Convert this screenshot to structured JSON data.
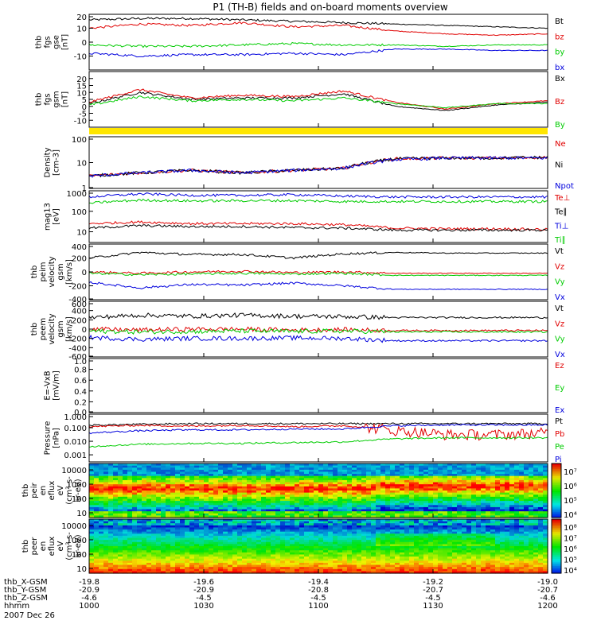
{
  "title": "P1 (TH-B) fields and on-board moments overview",
  "colors": {
    "black": "#000000",
    "red": "#e00000",
    "green": "#00cc00",
    "blue": "#0000dd",
    "yellow": "#ffe600"
  },
  "chart_data": [
    {
      "type": "line",
      "name": "fgs-gse",
      "ylabel": [
        "thb",
        "fgs",
        "gse",
        "[nT]"
      ],
      "ylim": [
        -20,
        20
      ],
      "ticks": [
        "20",
        "10",
        "0",
        "-10"
      ],
      "series": [
        {
          "name": "Bt",
          "color": "black",
          "base": [
            16,
            17,
            17,
            16,
            15,
            14,
            13,
            12,
            11,
            10
          ]
        },
        {
          "name": "bz",
          "color": "red",
          "base": [
            10,
            13,
            12,
            14,
            11,
            12,
            8,
            6,
            5,
            6
          ]
        },
        {
          "name": "by",
          "color": "green",
          "base": [
            -2,
            -3,
            -3,
            -2,
            -1,
            -2,
            -2,
            -3,
            -2,
            -2
          ]
        },
        {
          "name": "bx",
          "color": "blue",
          "base": [
            -8,
            -10,
            -9,
            -9,
            -8,
            -9,
            -5,
            -5,
            -6,
            -6
          ]
        }
      ]
    },
    {
      "type": "line",
      "name": "fgs-gsm",
      "ylabel": [
        "thb",
        "fgs",
        "gsm",
        "[nT]"
      ],
      "ylim": [
        -15,
        25
      ],
      "ticks": [
        "20",
        "15",
        "10",
        "5",
        "0",
        "-5",
        "-10"
      ],
      "series": [
        {
          "name": "Bx",
          "color": "black",
          "base": [
            2,
            10,
            5,
            6,
            6,
            9,
            0,
            -3,
            1,
            3
          ]
        },
        {
          "name": "Bz",
          "color": "red",
          "base": [
            3,
            12,
            6,
            8,
            7,
            11,
            3,
            -2,
            2,
            4
          ]
        },
        {
          "name": "By",
          "color": "green",
          "base": [
            1,
            7,
            4,
            5,
            4,
            6,
            2,
            -1,
            2,
            2
          ]
        }
      ]
    },
    {
      "type": "line",
      "name": "density",
      "ylabel": [
        "Density",
        "[cm-3]"
      ],
      "ylim": [
        1,
        100
      ],
      "log": true,
      "ticks": [
        "100",
        "10",
        "1"
      ],
      "series": [
        {
          "name": "Ne",
          "color": "red",
          "base": [
            3,
            4,
            5,
            4,
            5,
            6,
            14,
            15,
            15,
            16
          ]
        },
        {
          "name": "Ni",
          "color": "black",
          "base": [
            3,
            4,
            5,
            4,
            5,
            6,
            14,
            15,
            15,
            16
          ]
        },
        {
          "name": "Npot",
          "color": "blue",
          "base": [
            3,
            4,
            5,
            4,
            5,
            6,
            13,
            15,
            15,
            15
          ]
        }
      ]
    },
    {
      "type": "line",
      "name": "temperature",
      "ylabel": [
        "mag13",
        "[eV]"
      ],
      "ylim": [
        3,
        1000
      ],
      "log": true,
      "ticks": [
        "1000",
        "100",
        "10"
      ],
      "series": [
        {
          "name": "Te⊥",
          "color": "red",
          "base": [
            25,
            30,
            25,
            25,
            25,
            22,
            15,
            14,
            14,
            13
          ]
        },
        {
          "name": "Te∥",
          "color": "black",
          "base": [
            15,
            20,
            18,
            18,
            16,
            15,
            12,
            12,
            12,
            12
          ]
        },
        {
          "name": "Ti⊥",
          "color": "blue",
          "base": [
            500,
            700,
            600,
            600,
            650,
            550,
            500,
            500,
            500,
            500
          ]
        },
        {
          "name": "Ti∥",
          "color": "green",
          "base": [
            250,
            350,
            320,
            330,
            330,
            300,
            300,
            300,
            300,
            300
          ]
        }
      ]
    },
    {
      "type": "line",
      "name": "peim-velocity",
      "ylabel": [
        "thb",
        "peim",
        "velocity",
        "gsm",
        "[km/s]"
      ],
      "ylim": [
        -400,
        400
      ],
      "ticks": [
        "400",
        "200",
        "0",
        "-200",
        "-400"
      ],
      "series": [
        {
          "name": "Vt",
          "color": "black",
          "base": [
            200,
            280,
            250,
            250,
            200,
            260,
            280,
            270,
            270,
            270
          ]
        },
        {
          "name": "Vz",
          "color": "red",
          "base": [
            0,
            -20,
            0,
            10,
            -10,
            0,
            -20,
            -20,
            -20,
            -20
          ]
        },
        {
          "name": "Vy",
          "color": "green",
          "base": [
            -20,
            -40,
            -30,
            -20,
            -30,
            -20,
            -50,
            -50,
            -50,
            -50
          ]
        },
        {
          "name": "Vx",
          "color": "blue",
          "base": [
            -150,
            -230,
            -180,
            -190,
            -160,
            -200,
            -250,
            -250,
            -250,
            -250
          ]
        }
      ]
    },
    {
      "type": "line",
      "name": "peem-velocity",
      "ylabel": [
        "thb",
        "peem",
        "velocity",
        "gsm",
        "[km/s]"
      ],
      "ylim": [
        -600,
        600
      ],
      "ticks": [
        "600",
        "400",
        "200",
        "0",
        "-200",
        "-400",
        "-600"
      ],
      "series": [
        {
          "name": "Vt",
          "color": "black",
          "base": [
            250,
            300,
            280,
            300,
            280,
            270,
            250,
            250,
            250,
            250
          ]
        },
        {
          "name": "Vz",
          "color": "red",
          "base": [
            0,
            -20,
            0,
            0,
            -20,
            -10,
            -30,
            -30,
            -30,
            -30
          ]
        },
        {
          "name": "Vy",
          "color": "green",
          "base": [
            -40,
            -60,
            -50,
            -40,
            -50,
            -40,
            -60,
            -60,
            -60,
            -60
          ]
        },
        {
          "name": "Vx",
          "color": "blue",
          "base": [
            -180,
            -220,
            -200,
            -200,
            -190,
            -200,
            -250,
            -250,
            -250,
            -250
          ]
        }
      ]
    },
    {
      "type": "line",
      "name": "efield",
      "ylabel": [
        "E=-VxB",
        "[mV/m]"
      ],
      "ylim": [
        0,
        1
      ],
      "ticks": [
        "1.0",
        "0.8",
        "0.6",
        "0.4",
        "0.2",
        "0.0"
      ],
      "series": [
        {
          "name": "Ez",
          "color": "red",
          "base": []
        },
        {
          "name": "Ey",
          "color": "green",
          "base": []
        },
        {
          "name": "Ex",
          "color": "blue",
          "base": []
        }
      ]
    },
    {
      "type": "line",
      "name": "pressure",
      "ylabel": [
        "Pressure",
        "[nPa]"
      ],
      "ylim": [
        0.0003,
        1
      ],
      "log": true,
      "ticks": [
        "1.000",
        "0.100",
        "0.010",
        "0.001"
      ],
      "series": [
        {
          "name": "Pt",
          "color": "black",
          "base": [
            0.15,
            0.18,
            0.2,
            0.2,
            0.2,
            0.2,
            0.2,
            0.2,
            0.2,
            0.2
          ]
        },
        {
          "name": "Pb",
          "color": "red",
          "base": [
            0.12,
            0.15,
            0.13,
            0.15,
            0.12,
            0.14,
            0.06,
            0.03,
            0.03,
            0.04
          ]
        },
        {
          "name": "Pe",
          "color": "green",
          "base": [
            0.004,
            0.006,
            0.007,
            0.007,
            0.008,
            0.009,
            0.015,
            0.018,
            0.018,
            0.018
          ]
        },
        {
          "name": "Pi",
          "color": "blue",
          "base": [
            0.04,
            0.06,
            0.07,
            0.07,
            0.08,
            0.08,
            0.14,
            0.16,
            0.16,
            0.16
          ]
        }
      ]
    },
    {
      "type": "heatmap",
      "name": "peir",
      "ylabel": [
        "thb",
        "peir",
        "en",
        "eflux",
        "eV",
        "(cm²-s-",
        "sr-eV)"
      ],
      "ylim": [
        10,
        20000
      ],
      "ticks": [
        "10000",
        "1000",
        "100",
        "10"
      ],
      "colorbar": [
        "10⁷",
        "10⁶",
        "10⁵",
        "10⁴"
      ]
    },
    {
      "type": "heatmap",
      "name": "peer",
      "ylabel": [
        "thb",
        "peer",
        "en",
        "eflux",
        "eV",
        "(cm²-s-",
        "sr-eV)"
      ],
      "ylim": [
        10,
        20000
      ],
      "ticks": [
        "10000",
        "1000",
        "100",
        "10"
      ],
      "colorbar": [
        "10⁸",
        "10⁷",
        "10⁶",
        "10⁵",
        "10⁴"
      ]
    }
  ],
  "xaxis": {
    "rows": [
      {
        "label": "thb_X-GSM",
        "values": [
          "-19.8",
          "-19.6",
          "-19.4",
          "-19.2",
          "-19.0"
        ]
      },
      {
        "label": "thb_Y-GSM",
        "values": [
          "-20.9",
          "-20.9",
          "-20.8",
          "-20.7",
          "-20.7"
        ]
      },
      {
        "label": "thb_Z-GSM",
        "values": [
          "-4.6",
          "-4.5",
          "-4.5",
          "-4.5",
          "-4.6"
        ]
      },
      {
        "label": "hhmm",
        "values": [
          "1000",
          "1030",
          "1100",
          "1130",
          "1200"
        ]
      }
    ],
    "date": "2007 Dec 26"
  }
}
